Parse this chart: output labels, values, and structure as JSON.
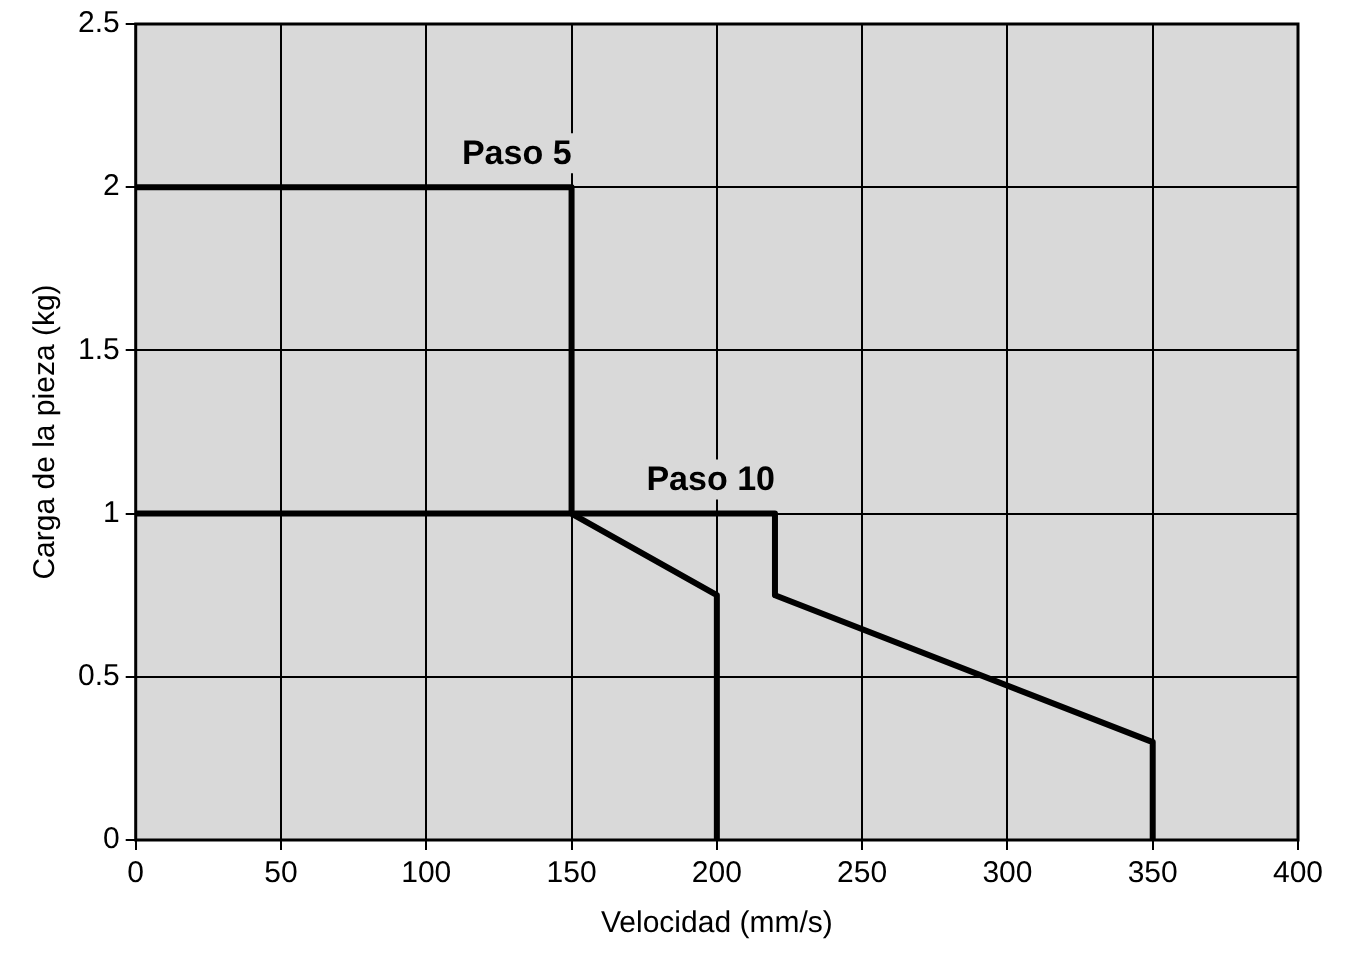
{
  "chart_data": {
    "type": "line",
    "xlabel": "Velocidad (mm/s)",
    "ylabel": "Carga de la pieza (kg)",
    "xlim": [
      0,
      400
    ],
    "xticks": [
      0,
      50,
      100,
      150,
      200,
      250,
      300,
      350,
      400
    ],
    "ylim": [
      0,
      2.5
    ],
    "yticks": [
      0,
      0.5,
      1,
      1.5,
      2,
      2.5
    ],
    "grid": true,
    "legend": false,
    "marker": "none",
    "line_style": "solid",
    "series": [
      {
        "name": "Paso 5",
        "color": "#000000",
        "x": [
          0,
          150,
          150,
          200,
          200
        ],
        "values": [
          2,
          2,
          1,
          0.75,
          0
        ]
      },
      {
        "name": "Paso 10",
        "color": "#000000",
        "x": [
          0,
          220,
          220,
          350,
          350
        ],
        "values": [
          1,
          1,
          0.75,
          0.3,
          0
        ]
      }
    ]
  }
}
